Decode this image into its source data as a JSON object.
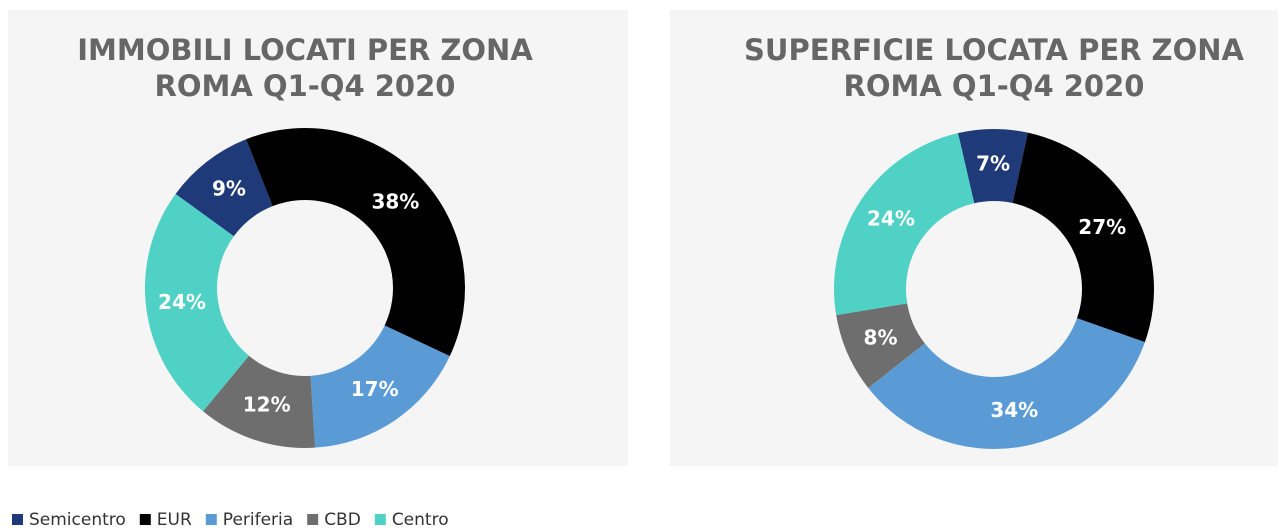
{
  "legend": {
    "categories": [
      "Semicentro",
      "EUR",
      "Periferia",
      "CBD",
      "Centro"
    ],
    "colors": [
      "#1f3a78",
      "#000000",
      "#5b9bd5",
      "#6e6e6e",
      "#4fd1c5"
    ]
  },
  "chart_data": [
    {
      "type": "donut",
      "title": "IMMOBILI LOCATI PER ZONA",
      "subtitle": "ROMA Q1-Q4 2020",
      "values": [
        9,
        38,
        17,
        12,
        24
      ],
      "value_labels": [
        "9%",
        "38%",
        "17%",
        "12%",
        "24%"
      ]
    },
    {
      "type": "donut",
      "title": "SUPERFICIE LOCATA PER ZONA",
      "subtitle": "ROMA Q1-Q4 2020",
      "values": [
        7,
        27,
        34,
        8,
        24
      ],
      "value_labels": [
        "7%",
        "27%",
        "34%",
        "8%",
        "24%"
      ]
    }
  ]
}
